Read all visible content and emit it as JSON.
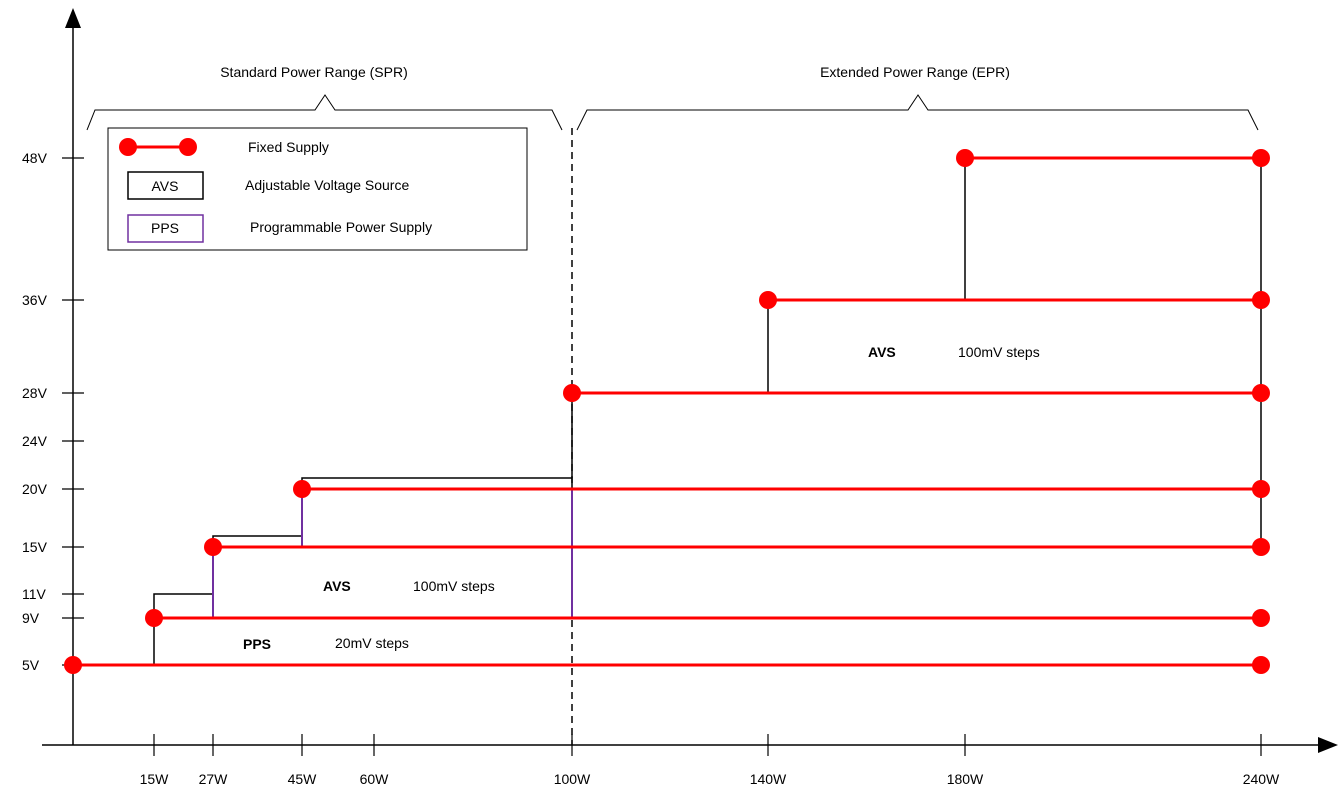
{
  "y_axis": {
    "ticks": [
      {
        "label": "5V",
        "value": 5
      },
      {
        "label": "9V",
        "value": 9
      },
      {
        "label": "11V",
        "value": 11
      },
      {
        "label": "15V",
        "value": 15
      },
      {
        "label": "20V",
        "value": 20
      },
      {
        "label": "24V",
        "value": 24
      },
      {
        "label": "28V",
        "value": 28
      },
      {
        "label": "36V",
        "value": 36
      },
      {
        "label": "48V",
        "value": 48
      }
    ]
  },
  "x_axis": {
    "ticks": [
      {
        "label": "15W",
        "value": 15
      },
      {
        "label": "27W",
        "value": 27
      },
      {
        "label": "45W",
        "value": 45
      },
      {
        "label": "60W",
        "value": 60
      },
      {
        "label": "100W",
        "value": 100
      },
      {
        "label": "140W",
        "value": 140
      },
      {
        "label": "180W",
        "value": 180
      },
      {
        "label": "240W",
        "value": 240
      }
    ]
  },
  "ranges": {
    "spr": "Standard Power Range (SPR)",
    "epr": "Extended Power Range (EPR)"
  },
  "legend": {
    "fixed": "Fixed Supply",
    "avs_box": "AVS",
    "avs": "Adjustable Voltage Source",
    "pps_box": "PPS",
    "pps": "Programmable Power Supply"
  },
  "annotations": {
    "epr_avs": {
      "label": "AVS",
      "steps": "100mV steps"
    },
    "spr_avs": {
      "label": "AVS",
      "steps": "100mV steps"
    },
    "pps": {
      "label": "PPS",
      "steps": "20mV steps"
    }
  },
  "fixed_supplies": [
    {
      "voltage": 5,
      "from_w": 0,
      "to_w": 240
    },
    {
      "voltage": 9,
      "from_w": 15,
      "to_w": 240
    },
    {
      "voltage": 15,
      "from_w": 27,
      "to_w": 240
    },
    {
      "voltage": 20,
      "from_w": 45,
      "to_w": 240
    },
    {
      "voltage": 28,
      "from_w": 100,
      "to_w": 240
    },
    {
      "voltage": 36,
      "from_w": 140,
      "to_w": 240
    },
    {
      "voltage": 48,
      "from_w": 180,
      "to_w": 240
    }
  ],
  "colors": {
    "fixed": "#ff0000",
    "pps": "#7030a0",
    "avs": "#000000"
  }
}
